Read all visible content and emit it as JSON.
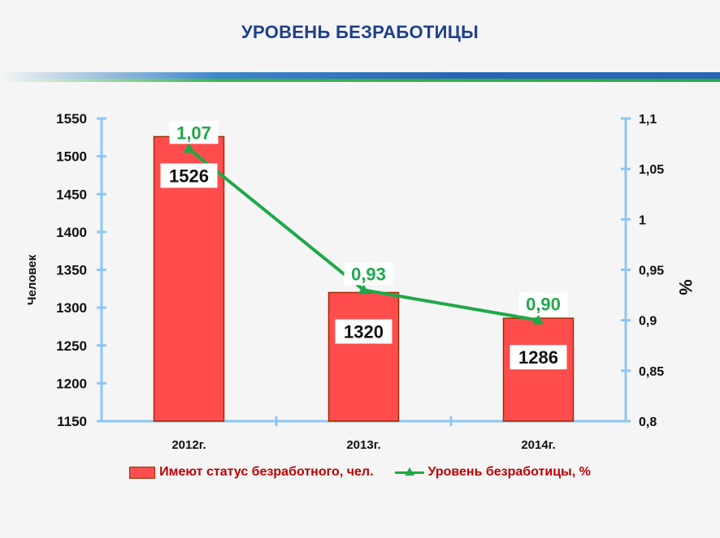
{
  "page_title": "УРОВЕНЬ БЕЗРАБОТИЦЫ",
  "colors": {
    "bar_fill": "#ff4d4d",
    "bar_border": "#a52a00",
    "line": "#1fa84a",
    "axis": "#8ec6f2",
    "title": "#1f3f8c",
    "legend_text": "#c00000"
  },
  "chart_data": {
    "type": "bar",
    "title": "УРОВЕНЬ БЕЗРАБОТИЦЫ",
    "categories": [
      "2012г.",
      "2013г.",
      "2014г."
    ],
    "ylabel": "Человек",
    "ylabel_right": "%",
    "ylim": [
      1150,
      1550
    ],
    "ylim_right": [
      0.8,
      1.1
    ],
    "yticks": [
      "1550",
      "1500",
      "1450",
      "1400",
      "1350",
      "1300",
      "1250",
      "1200",
      "1150"
    ],
    "yticks_right": [
      "1,1",
      "1,05",
      "1",
      "0,95",
      "0,9",
      "0,85",
      "0,8"
    ],
    "grid": false,
    "legend_position": "bottom",
    "series": [
      {
        "name": "Имеют статус безработного, чел.",
        "type": "bar",
        "axis": "left",
        "values": [
          1526,
          1320,
          1286
        ],
        "labels": [
          "1526",
          "1320",
          "1286"
        ]
      },
      {
        "name": "Уровень безработицы, %",
        "type": "line",
        "axis": "right",
        "marker": "triangle",
        "values": [
          1.07,
          0.93,
          0.9
        ],
        "labels": [
          "1,07",
          "0,93",
          "0,90"
        ]
      }
    ]
  }
}
